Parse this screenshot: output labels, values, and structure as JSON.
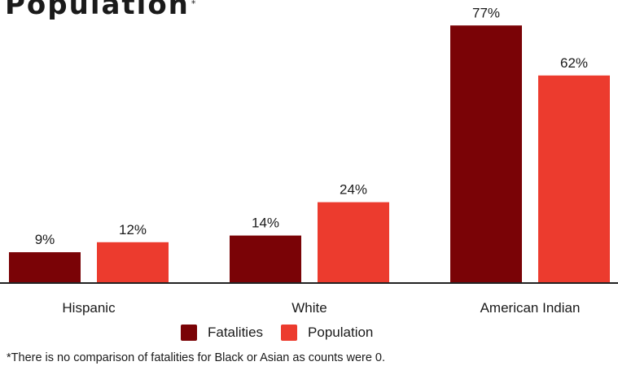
{
  "header": {
    "title": "Population",
    "title_mark": "*"
  },
  "footnote": "*There is no comparison of fatalities for Black  or Asian as counts were 0.",
  "colors": {
    "fatalities": "#7a0306",
    "population": "#ec3b2e",
    "axis": "#222222"
  },
  "chart_data": {
    "type": "bar",
    "categories": [
      "Hispanic",
      "White",
      "American Indian"
    ],
    "series": [
      {
        "name": "Fatalities",
        "values": [
          9,
          14,
          77
        ],
        "labels": [
          "9%",
          "14%",
          "77%"
        ]
      },
      {
        "name": "Population",
        "values": [
          12,
          24,
          62
        ],
        "labels": [
          "12%",
          "24%",
          "62%"
        ]
      }
    ],
    "value_unit": "%",
    "legend_position": "bottom-center",
    "grid": false
  }
}
